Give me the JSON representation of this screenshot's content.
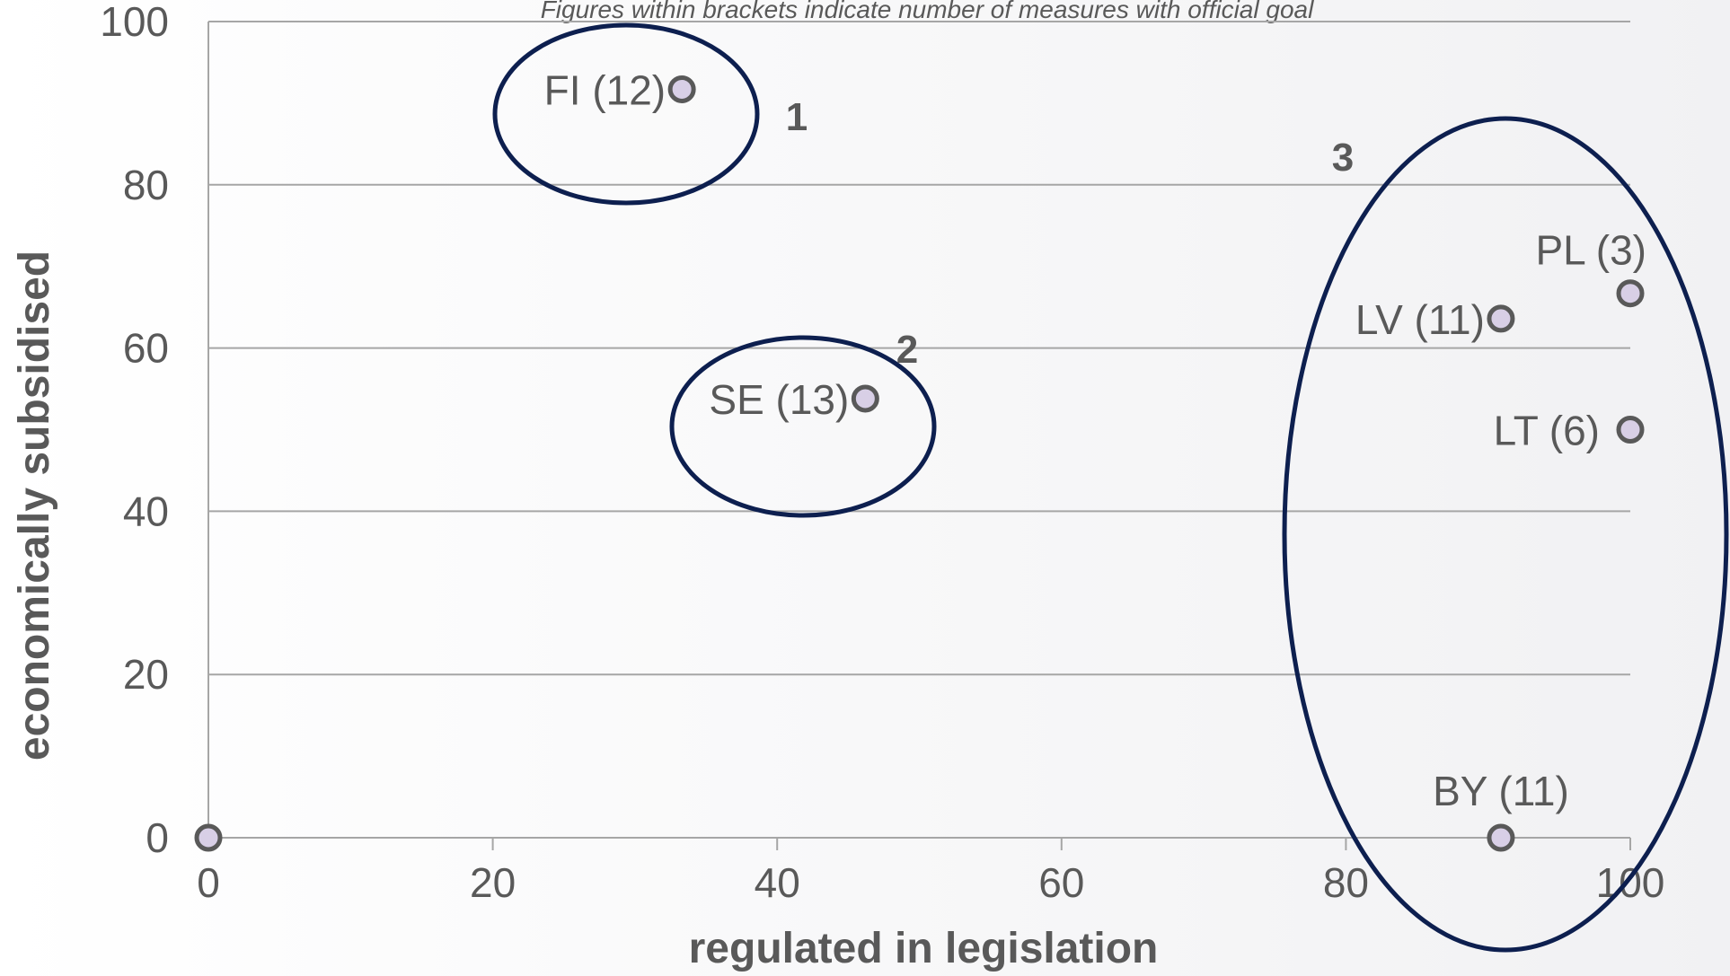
{
  "chart_data": {
    "type": "scatter",
    "subtitle": "Figures within brackets indicate number of measures with official goal",
    "xlabel": "regulated in legislation",
    "ylabel": "economically subsidised",
    "xlim": [
      0,
      100
    ],
    "ylim": [
      0,
      100
    ],
    "xticks": [
      "0",
      "20",
      "40",
      "60",
      "80",
      "100"
    ],
    "yticks": [
      "0",
      "20",
      "40",
      "60",
      "80",
      "100"
    ],
    "grid": "horizontal",
    "points": [
      {
        "label": "",
        "x": 0,
        "y": 0
      },
      {
        "label": "FI (12)",
        "x": 33.3,
        "y": 91.7
      },
      {
        "label": "SE (13)",
        "x": 46.2,
        "y": 53.8
      },
      {
        "label": "LV (11)",
        "x": 90.9,
        "y": 63.6
      },
      {
        "label": "PL (3)",
        "x": 100,
        "y": 66.7
      },
      {
        "label": "LT (6)",
        "x": 100,
        "y": 50
      },
      {
        "label": "BY (11)",
        "x": 90.9,
        "y": 0
      }
    ],
    "clusters": [
      {
        "label": "1",
        "members": [
          "FI (12)"
        ]
      },
      {
        "label": "2",
        "members": [
          "SE (13)"
        ]
      },
      {
        "label": "3",
        "members": [
          "LV (11)",
          "PL (3)",
          "LT (6)",
          "BY (11)"
        ]
      }
    ],
    "colors": {
      "point_fill": "#d8cfe6",
      "point_stroke": "#595959",
      "cluster_outline": "#0d1f4f",
      "grid": "#a6a6a6",
      "text": "#595959"
    }
  }
}
